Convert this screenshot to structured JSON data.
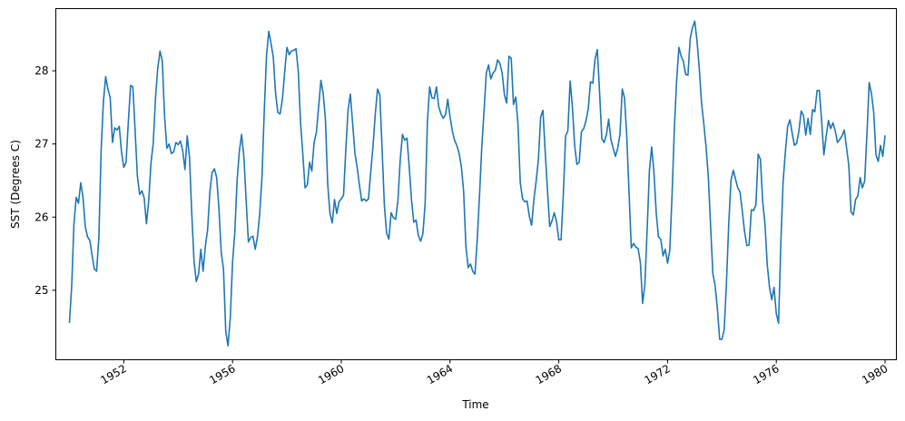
{
  "chart_data": {
    "type": "line",
    "title": "",
    "xlabel": "Time",
    "ylabel": "SST (Degrees C)",
    "xlim": [
      "1949-07",
      "1980-06"
    ],
    "ylim": [
      24.05,
      28.85
    ],
    "grid": false,
    "legend": "none",
    "line_color": "#1f77b4",
    "x_ticks": [
      {
        "value": "1952-01",
        "label": "1952"
      },
      {
        "value": "1956-01",
        "label": "1956"
      },
      {
        "value": "1960-01",
        "label": "1960"
      },
      {
        "value": "1964-01",
        "label": "1964"
      },
      {
        "value": "1968-01",
        "label": "1968"
      },
      {
        "value": "1972-01",
        "label": "1972"
      },
      {
        "value": "1976-01",
        "label": "1976"
      },
      {
        "value": "1980-01",
        "label": "1980"
      }
    ],
    "y_ticks": [
      {
        "value": 25,
        "label": "25"
      },
      {
        "value": 26,
        "label": "26"
      },
      {
        "value": 27,
        "label": "27"
      },
      {
        "value": 28,
        "label": "28"
      }
    ],
    "series": [
      {
        "x": [
          "1950-01",
          "1950-02",
          "1950-03",
          "1950-04",
          "1950-05",
          "1950-06",
          "1950-07",
          "1950-08",
          "1950-09",
          "1950-10",
          "1950-11",
          "1950-12",
          "1951-01",
          "1951-02",
          "1951-03",
          "1951-04",
          "1951-05",
          "1951-06",
          "1951-07",
          "1951-08",
          "1951-09",
          "1951-10",
          "1951-11",
          "1951-12",
          "1952-01",
          "1952-02",
          "1952-03",
          "1952-04",
          "1952-05",
          "1952-06",
          "1952-07",
          "1952-08",
          "1952-09",
          "1952-10",
          "1952-11",
          "1952-12",
          "1953-01",
          "1953-02",
          "1953-03",
          "1953-04",
          "1953-05",
          "1953-06",
          "1953-07",
          "1953-08",
          "1953-09",
          "1953-10",
          "1953-11",
          "1953-12",
          "1954-01",
          "1954-02",
          "1954-03",
          "1954-04",
          "1954-05",
          "1954-06",
          "1954-07",
          "1954-08",
          "1954-09",
          "1954-10",
          "1954-11",
          "1954-12",
          "1955-01",
          "1955-02",
          "1955-03",
          "1955-04",
          "1955-05",
          "1955-06",
          "1955-07",
          "1955-08",
          "1955-09",
          "1955-10",
          "1955-11",
          "1955-12",
          "1956-01",
          "1956-02",
          "1956-03",
          "1956-04",
          "1956-05",
          "1956-06",
          "1956-07",
          "1956-08",
          "1956-09",
          "1956-10",
          "1956-11",
          "1956-12",
          "1957-01",
          "1957-02",
          "1957-03",
          "1957-04",
          "1957-05",
          "1957-06",
          "1957-07",
          "1957-08",
          "1957-09",
          "1957-10",
          "1957-11",
          "1957-12",
          "1958-01",
          "1958-02",
          "1958-03",
          "1958-04",
          "1958-05",
          "1958-06",
          "1958-07",
          "1958-08",
          "1958-09",
          "1958-10",
          "1958-11",
          "1958-12",
          "1959-01",
          "1959-02",
          "1959-03",
          "1959-04",
          "1959-05",
          "1959-06",
          "1959-07",
          "1959-08",
          "1959-09",
          "1959-10",
          "1959-11",
          "1959-12",
          "1960-01",
          "1960-02",
          "1960-03",
          "1960-04",
          "1960-05",
          "1960-06",
          "1960-07",
          "1960-08",
          "1960-09",
          "1960-10",
          "1960-11",
          "1960-12",
          "1961-01",
          "1961-02",
          "1961-03",
          "1961-04",
          "1961-05",
          "1961-06",
          "1961-07",
          "1961-08",
          "1961-09",
          "1961-10",
          "1961-11",
          "1961-12",
          "1962-01",
          "1962-02",
          "1962-03",
          "1962-04",
          "1962-05",
          "1962-06",
          "1962-07",
          "1962-08",
          "1962-09",
          "1962-10",
          "1962-11",
          "1962-12",
          "1963-01",
          "1963-02",
          "1963-03",
          "1963-04",
          "1963-05",
          "1963-06",
          "1963-07",
          "1963-08",
          "1963-09",
          "1963-10",
          "1963-11",
          "1963-12",
          "1964-01",
          "1964-02",
          "1964-03",
          "1964-04",
          "1964-05",
          "1964-06",
          "1964-07",
          "1964-08",
          "1964-09",
          "1964-10",
          "1964-11",
          "1964-12",
          "1965-01",
          "1965-02",
          "1965-03",
          "1965-04",
          "1965-05",
          "1965-06",
          "1965-07",
          "1965-08",
          "1965-09",
          "1965-10",
          "1965-11",
          "1965-12",
          "1966-01",
          "1966-02",
          "1966-03",
          "1966-04",
          "1966-05",
          "1966-06",
          "1966-07",
          "1966-08",
          "1966-09",
          "1966-10",
          "1966-11",
          "1966-12",
          "1967-01",
          "1967-02",
          "1967-03",
          "1967-04",
          "1967-05",
          "1967-06",
          "1967-07",
          "1967-08",
          "1967-09",
          "1967-10",
          "1967-11",
          "1967-12",
          "1968-01",
          "1968-02",
          "1968-03",
          "1968-04",
          "1968-05",
          "1968-06",
          "1968-07",
          "1968-08",
          "1968-09",
          "1968-10",
          "1968-11",
          "1968-12",
          "1969-01",
          "1969-02",
          "1969-03",
          "1969-04",
          "1969-05",
          "1969-06",
          "1969-07",
          "1969-08",
          "1969-09",
          "1969-10",
          "1969-11",
          "1969-12",
          "1970-01",
          "1970-02",
          "1970-03",
          "1970-04",
          "1970-05",
          "1970-06",
          "1970-07",
          "1970-08",
          "1970-09",
          "1970-10",
          "1970-11",
          "1970-12",
          "1971-01",
          "1971-02",
          "1971-03",
          "1971-04",
          "1971-05",
          "1971-06",
          "1971-07",
          "1971-08",
          "1971-09",
          "1971-10",
          "1971-11",
          "1971-12",
          "1972-01",
          "1972-02",
          "1972-03",
          "1972-04",
          "1972-05",
          "1972-06",
          "1972-07",
          "1972-08",
          "1972-09",
          "1972-10",
          "1972-11",
          "1972-12",
          "1973-01",
          "1973-02",
          "1973-03",
          "1973-04",
          "1973-05",
          "1973-06",
          "1973-07",
          "1973-08",
          "1973-09",
          "1973-10",
          "1973-11",
          "1973-12",
          "1974-01",
          "1974-02",
          "1974-03",
          "1974-04",
          "1974-05",
          "1974-06",
          "1974-07",
          "1974-08",
          "1974-09",
          "1974-10",
          "1974-11",
          "1974-12",
          "1975-01",
          "1975-02",
          "1975-03",
          "1975-04",
          "1975-05",
          "1975-06",
          "1975-07",
          "1975-08",
          "1975-09",
          "1975-10",
          "1975-11",
          "1975-12",
          "1976-01",
          "1976-02",
          "1976-03",
          "1976-04",
          "1976-05",
          "1976-06",
          "1976-07",
          "1976-08",
          "1976-09",
          "1976-10",
          "1976-11",
          "1976-12",
          "1977-01",
          "1977-02",
          "1977-03",
          "1977-04",
          "1977-05",
          "1977-06",
          "1977-07",
          "1977-08",
          "1977-09",
          "1977-10",
          "1977-11",
          "1977-12",
          "1978-01",
          "1978-02",
          "1978-03",
          "1978-04",
          "1978-05",
          "1978-06",
          "1978-07",
          "1978-08",
          "1978-09",
          "1978-10",
          "1978-11",
          "1978-12",
          "1979-01",
          "1979-02",
          "1979-03",
          "1979-04",
          "1979-05",
          "1979-06",
          "1979-07",
          "1979-08",
          "1979-09",
          "1979-10",
          "1979-11",
          "1979-12"
        ],
        "values": [
          24.56,
          25.05,
          25.91,
          26.27,
          26.19,
          26.47,
          26.27,
          25.87,
          25.73,
          25.68,
          25.48,
          25.29,
          25.26,
          25.72,
          26.92,
          27.58,
          27.92,
          27.75,
          27.63,
          27.02,
          27.22,
          27.19,
          27.24,
          26.89,
          26.68,
          26.75,
          27.3,
          27.8,
          27.78,
          27.18,
          26.56,
          26.31,
          26.36,
          26.26,
          25.91,
          26.23,
          26.74,
          27.01,
          27.63,
          28.04,
          28.27,
          28.13,
          27.38,
          26.94,
          27.0,
          26.87,
          26.89,
          27.02,
          26.99,
          27.04,
          26.91,
          26.65,
          27.11,
          26.82,
          26.05,
          25.4,
          25.12,
          25.22,
          25.56,
          25.26,
          25.6,
          25.83,
          26.35,
          26.61,
          26.66,
          26.54,
          26.11,
          25.52,
          25.29,
          24.44,
          24.24,
          24.62,
          25.38,
          25.79,
          26.5,
          26.9,
          27.13,
          26.83,
          26.23,
          25.66,
          25.72,
          25.74,
          25.56,
          25.73,
          26.05,
          26.55,
          27.45,
          28.21,
          28.54,
          28.37,
          28.18,
          27.69,
          27.43,
          27.41,
          27.61,
          27.98,
          28.32,
          28.22,
          28.27,
          28.28,
          28.3,
          28.0,
          27.3,
          26.87,
          26.4,
          26.44,
          26.75,
          26.63,
          27.02,
          27.16,
          27.51,
          27.87,
          27.69,
          27.34,
          26.45,
          26.05,
          25.92,
          26.24,
          26.05,
          26.21,
          26.25,
          26.3,
          26.93,
          27.47,
          27.68,
          27.28,
          26.88,
          26.68,
          26.44,
          26.22,
          26.25,
          26.22,
          26.25,
          26.62,
          26.97,
          27.41,
          27.75,
          27.67,
          26.94,
          26.17,
          25.78,
          25.7,
          26.06,
          25.99,
          25.97,
          26.23,
          26.78,
          27.13,
          27.05,
          27.08,
          26.68,
          26.23,
          25.93,
          25.96,
          25.75,
          25.67,
          25.77,
          26.18,
          27.3,
          27.78,
          27.63,
          27.62,
          27.78,
          27.51,
          27.41,
          27.35,
          27.4,
          27.61,
          27.37,
          27.18,
          27.05,
          26.98,
          26.87,
          26.69,
          26.35,
          25.6,
          25.31,
          25.36,
          25.26,
          25.22,
          25.69,
          26.29,
          26.95,
          27.45,
          27.97,
          28.08,
          27.89,
          27.97,
          28.01,
          28.15,
          28.1,
          27.97,
          27.67,
          27.56,
          28.2,
          28.17,
          27.54,
          27.64,
          27.26,
          26.47,
          26.25,
          26.21,
          26.22,
          26.01,
          25.89,
          26.24,
          26.49,
          26.79,
          27.37,
          27.46,
          26.89,
          26.37,
          25.87,
          25.95,
          26.06,
          25.94,
          25.69,
          25.69,
          26.31,
          27.11,
          27.18,
          27.86,
          27.51,
          26.98,
          26.72,
          26.75,
          27.17,
          27.21,
          27.32,
          27.48,
          27.85,
          27.83,
          28.16,
          28.29,
          27.71,
          27.07,
          27.02,
          27.12,
          27.34,
          27.06,
          26.94,
          26.83,
          26.94,
          27.13,
          27.75,
          27.63,
          27.11,
          26.34,
          25.58,
          25.64,
          25.59,
          25.57,
          25.38,
          24.82,
          25.08,
          25.83,
          26.64,
          26.96,
          26.61,
          26.06,
          25.73,
          25.7,
          25.47,
          25.56,
          25.37,
          25.55,
          26.31,
          27.21,
          27.86,
          28.32,
          28.2,
          28.13,
          27.95,
          27.94,
          28.44,
          28.59,
          28.68,
          28.41,
          28.03,
          27.56,
          27.28,
          26.96,
          26.55,
          25.88,
          25.23,
          25.06,
          24.75,
          24.33,
          24.33,
          24.46,
          25.1,
          25.9,
          26.5,
          26.64,
          26.52,
          26.4,
          26.34,
          26.08,
          25.8,
          25.61,
          25.62,
          26.1,
          26.09,
          26.17,
          26.86,
          26.79,
          26.21,
          25.91,
          25.35,
          25.04,
          24.87,
          25.04,
          24.68,
          24.55,
          25.64,
          26.48,
          26.89,
          27.24,
          27.33,
          27.15,
          26.98,
          27.01,
          27.18,
          27.45,
          27.39,
          27.12,
          27.35,
          27.13,
          27.47,
          27.44,
          27.73,
          27.73,
          27.32,
          26.85,
          27.1,
          27.32,
          27.21,
          27.29,
          27.18,
          27.02,
          27.06,
          27.11,
          27.19,
          26.95,
          26.71,
          26.07,
          26.03,
          26.24,
          26.29,
          26.54,
          26.4,
          26.49,
          27.13,
          27.84,
          27.69,
          27.43,
          26.85,
          26.76,
          26.98,
          26.83
        ]
      },
      {
        "x": [
          "1980-01"
        ],
        "values": [
          27.11
        ]
      }
    ]
  }
}
